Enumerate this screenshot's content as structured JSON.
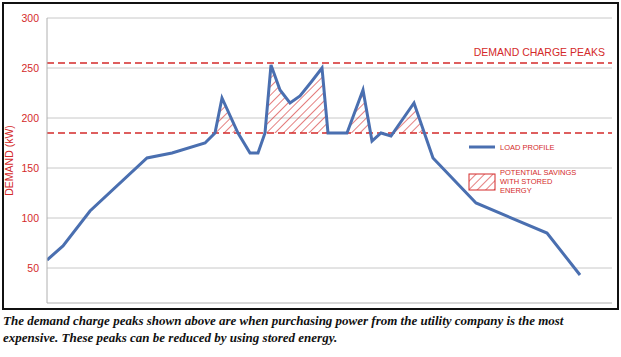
{
  "chart_data": {
    "type": "line",
    "y_label": "DEMAND (kW)",
    "x": [
      0,
      0.16,
      0.43,
      1.0,
      1.25,
      1.58,
      1.68,
      1.75,
      1.91,
      2.03,
      2.11,
      2.18,
      2.24,
      2.33,
      2.43,
      2.53,
      2.65,
      2.75,
      2.81,
      3.0,
      3.16,
      3.25,
      3.34,
      3.44,
      3.67,
      3.86,
      4.29,
      5.0,
      5.33
    ],
    "series": [
      {
        "name": "LOAD PROFILE",
        "color": "#4a6fb0",
        "values": [
          58,
          72,
          107,
          160,
          165,
          175,
          185,
          220,
          185,
          165,
          165,
          185,
          253,
          228,
          215,
          222,
          237,
          250,
          185,
          185,
          228,
          177,
          185,
          182,
          215,
          160,
          115,
          85,
          43
        ]
      }
    ],
    "xlim": [
      0,
      5.65
    ],
    "xticks": [
      0,
      1,
      2,
      3,
      4,
      5
    ],
    "ylim": [
      15,
      300
    ],
    "yticks": [
      50,
      100,
      150,
      200,
      250,
      300
    ],
    "grid": true,
    "tick_labels": "y",
    "legend": "right",
    "reference_lines": [
      {
        "value": 255,
        "color": "#d42a2a",
        "line_style": "dashed",
        "label": "DEMAND CHARGE PEAKS"
      },
      {
        "value": 185,
        "color": "#d42a2a",
        "line_style": "dashed"
      }
    ],
    "shaded_region": {
      "name": "POTENTIAL SAVINGS WITH STORED ENERGY",
      "color": "#d42a2a"
    },
    "caption": "The demand charge peaks shown above are when purchasing power from the utility company is the most expensive. These peaks can be reduced by using stored energy."
  }
}
